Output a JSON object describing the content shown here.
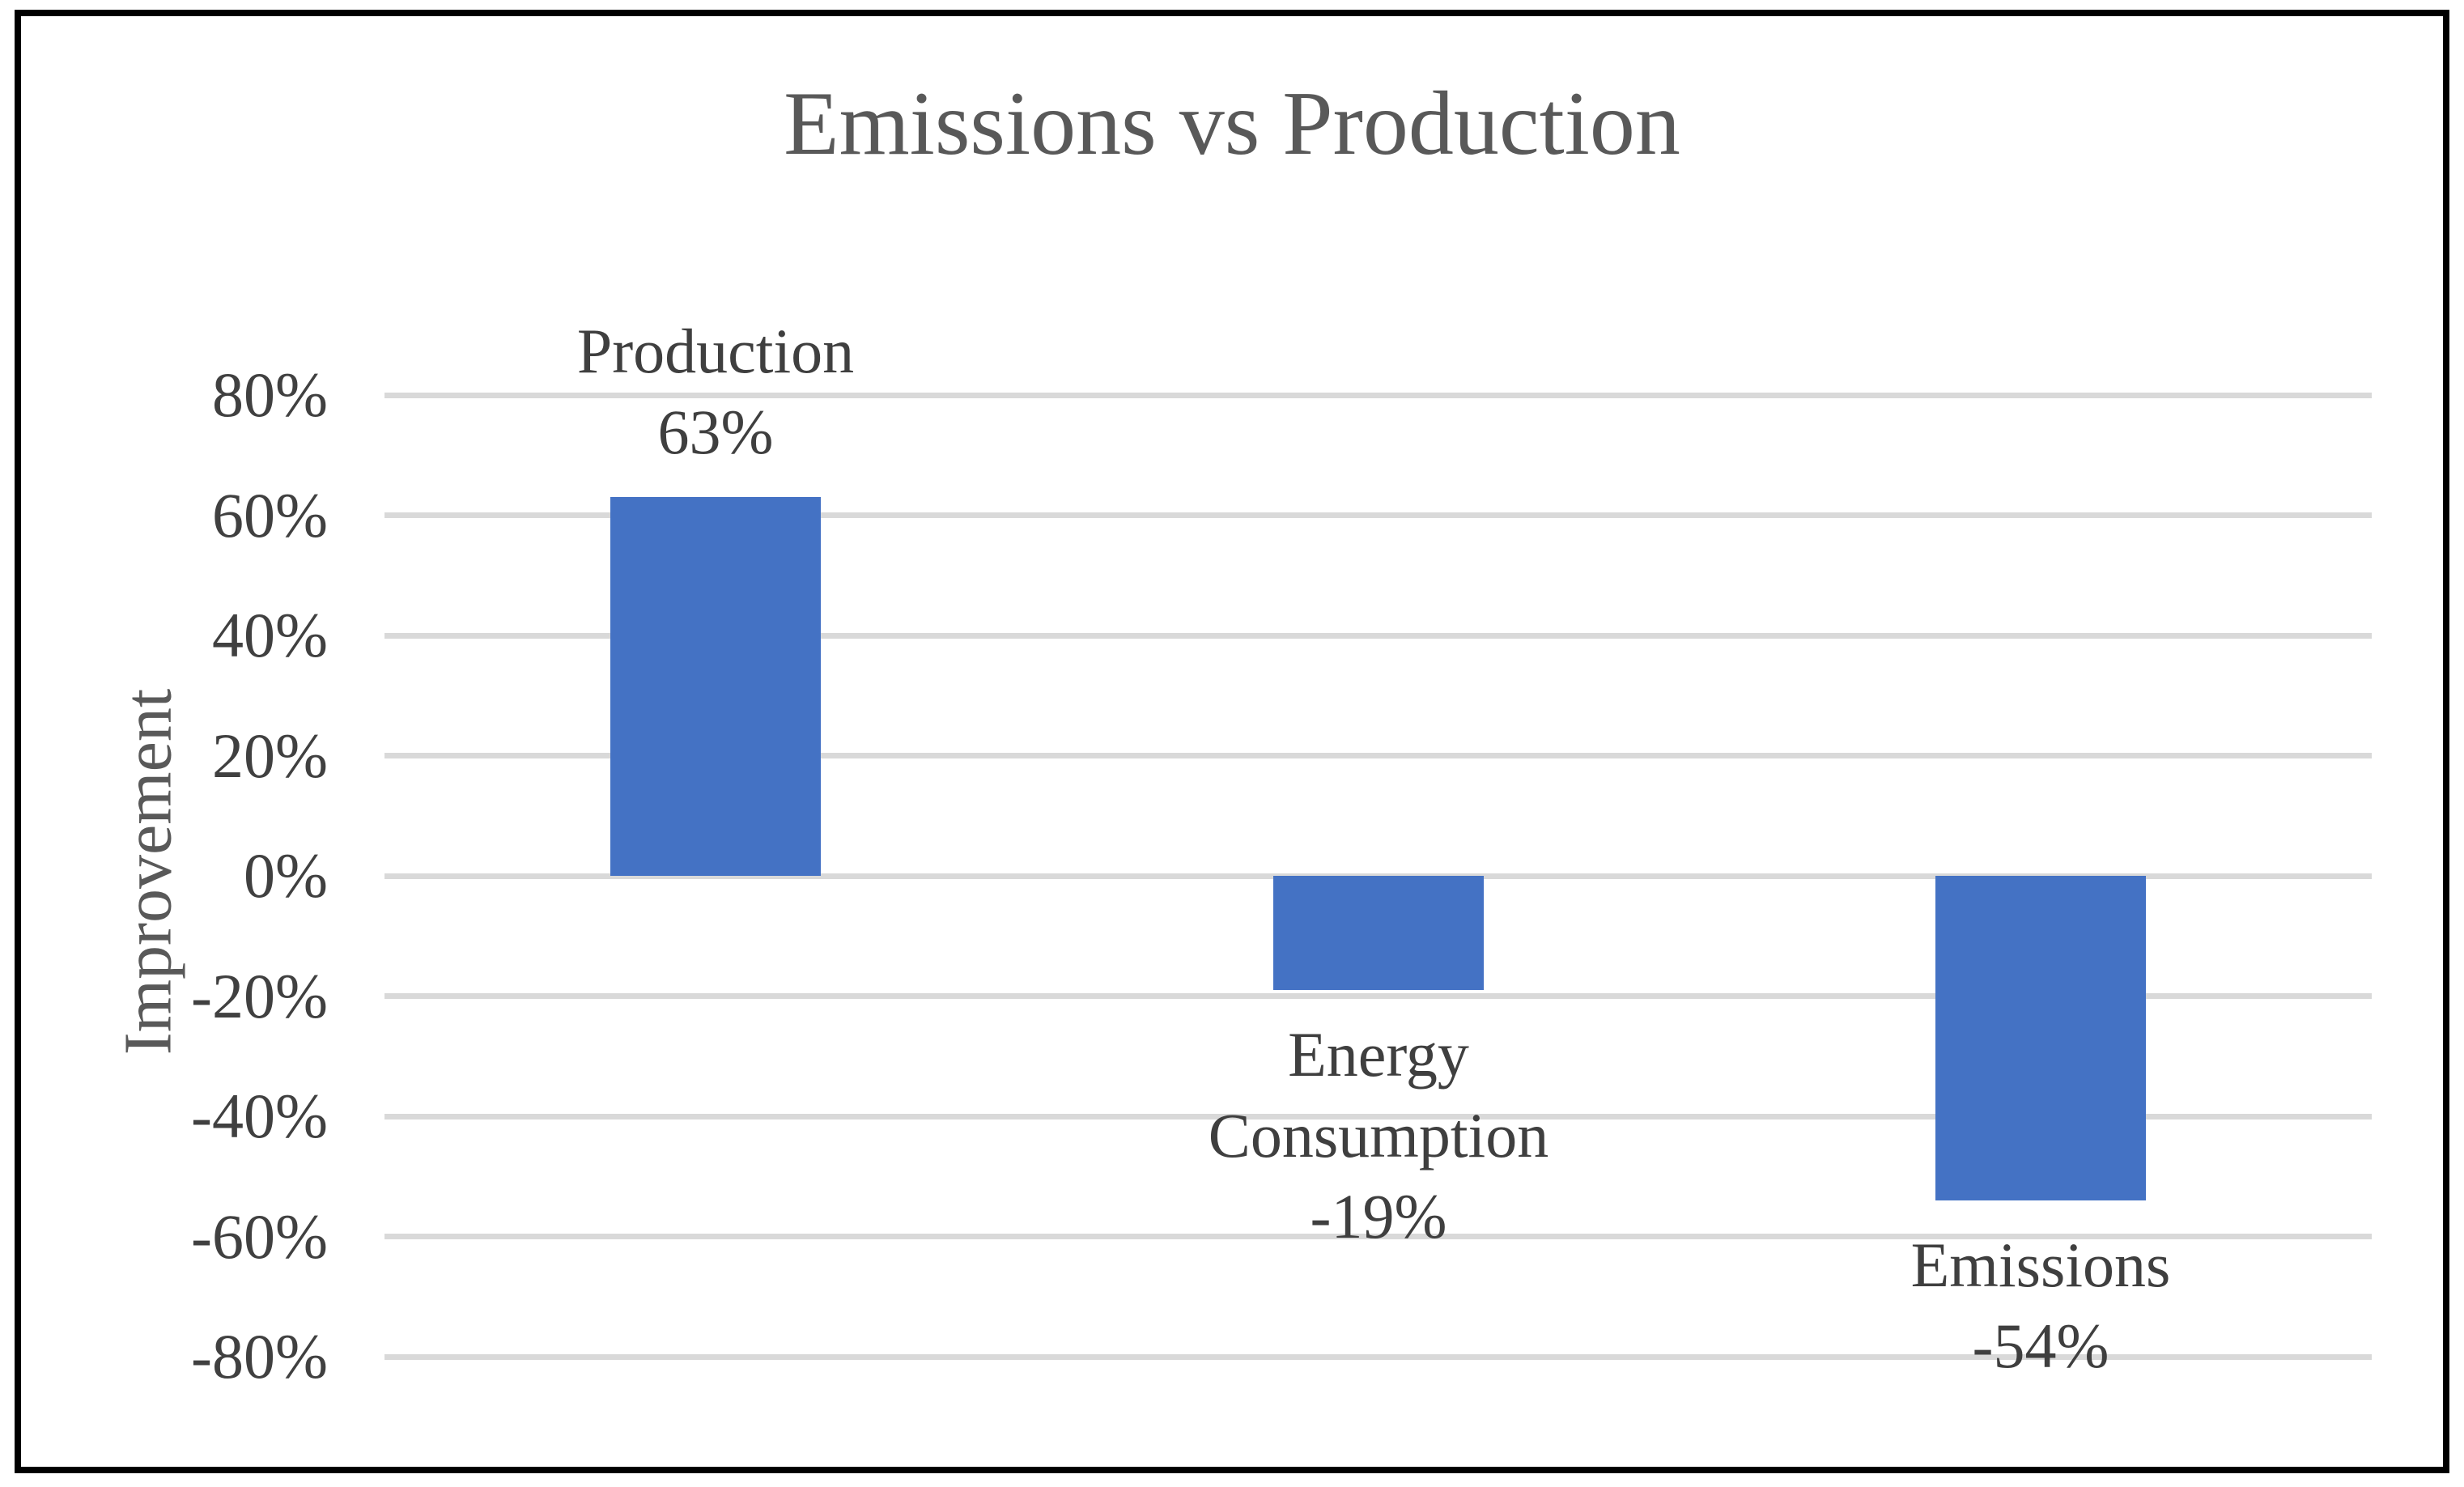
{
  "frame": {
    "border_color": "#000000",
    "background": "#FFFFFF"
  },
  "chart_data": {
    "type": "bar",
    "title": "Emissions vs Production",
    "xlabel": "",
    "ylabel": "Improvement",
    "categories": [
      "Production",
      "Energy Consumption",
      "Emissions"
    ],
    "values": [
      63,
      -19,
      -54
    ],
    "value_labels": [
      "63%",
      "-19%",
      "-54%"
    ],
    "category_label_lines": [
      [
        "Production"
      ],
      [
        "Energy",
        "Consumption"
      ],
      [
        "Emissions"
      ]
    ],
    "data_label_position": "outside-end",
    "ylim": [
      -80,
      80
    ],
    "ytick_step": 20,
    "ytick_labels": [
      "80%",
      "60%",
      "40%",
      "20%",
      "0%",
      "-20%",
      "-40%",
      "-60%",
      "-80%"
    ],
    "grid": true,
    "legend": false,
    "bar_color": "#4472C4",
    "gridline_color": "#D9D9D9",
    "title_color": "#595959",
    "axis_title_color": "#595959",
    "tick_label_color": "#404040",
    "data_label_color": "#3F3F3F"
  }
}
